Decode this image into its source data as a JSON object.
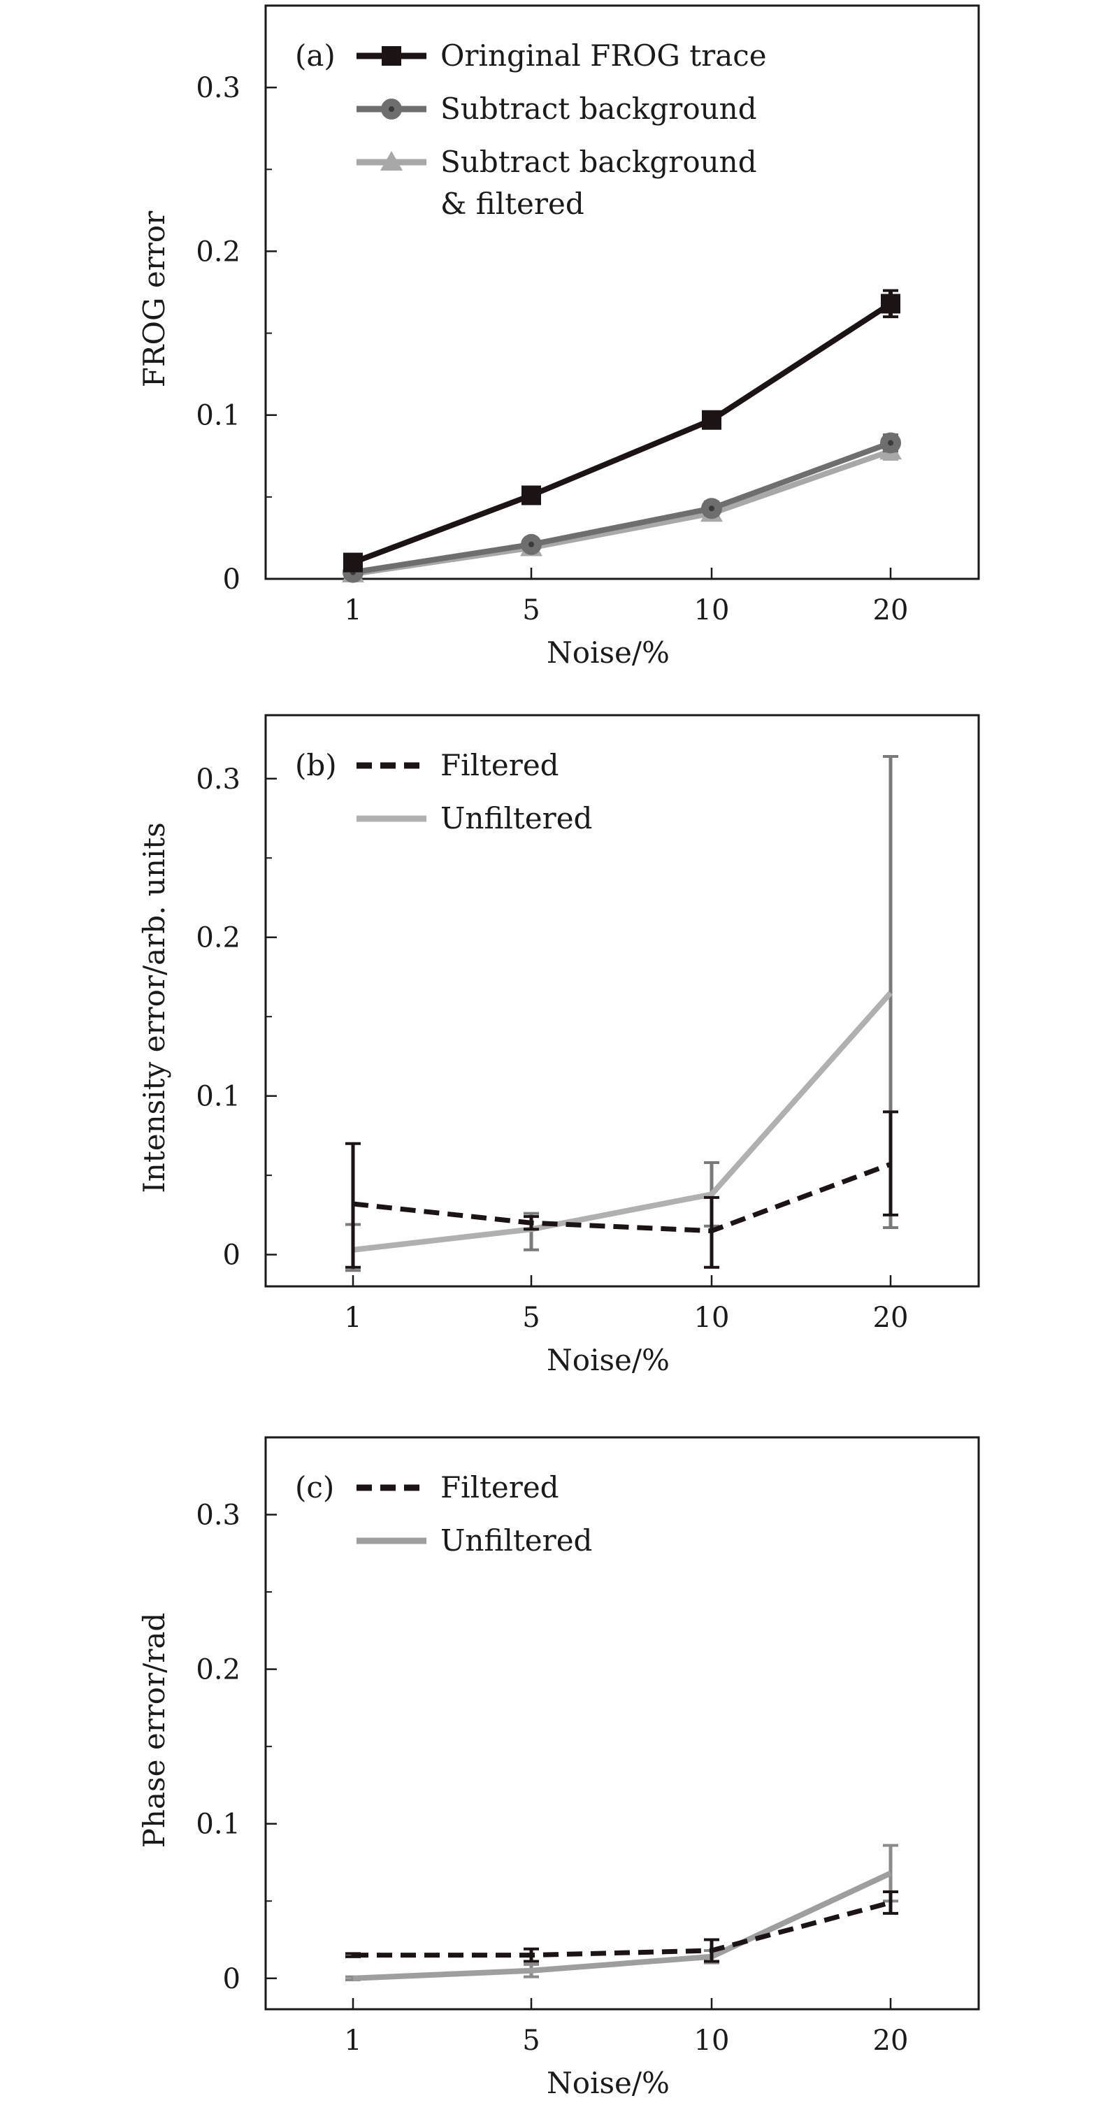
{
  "chart_data": [
    {
      "type": "line",
      "panel_label": "(a)",
      "xlabel": "Noise/%",
      "ylabel": "FROG error",
      "categories": [
        "1",
        "5",
        "10",
        "20"
      ],
      "ylim": [
        0,
        0.35
      ],
      "yticks": [
        0,
        0.1,
        0.2,
        0.3
      ],
      "ytick_labels": [
        "0",
        "0.1",
        "0.2",
        "0.3"
      ],
      "grid": false,
      "legend_position": "top-left",
      "series": [
        {
          "name": "Oringinal FROG trace",
          "values": [
            0.01,
            0.051,
            0.097,
            0.168
          ],
          "errors": [
            0.003,
            0.003,
            0.003,
            0.008
          ],
          "color": "#1c1414",
          "marker": "square",
          "dash": "solid"
        },
        {
          "name": "Subtract background",
          "values": [
            0.004,
            0.021,
            0.043,
            0.083
          ],
          "errors": [
            0.003,
            0.003,
            0.004,
            0.005
          ],
          "color": "#6e6e6e",
          "marker": "circle",
          "dash": "solid"
        },
        {
          "name": "Subtract background & filtered",
          "name_lines": [
            "Subtract background",
            "& filtered"
          ],
          "values": [
            0.003,
            0.019,
            0.04,
            0.078
          ],
          "errors": [
            0.002,
            0.003,
            0.004,
            0.005
          ],
          "color": "#a8a8a8",
          "marker": "triangle",
          "dash": "solid"
        }
      ]
    },
    {
      "type": "line",
      "panel_label": "(b)",
      "xlabel": "Noise/%",
      "ylabel": "Intensity error/arb. units",
      "categories": [
        "1",
        "5",
        "10",
        "20"
      ],
      "ylim": [
        -0.02,
        0.34
      ],
      "yticks": [
        0,
        0.1,
        0.2,
        0.3
      ],
      "ytick_labels": [
        "0",
        "0.1",
        "0.2",
        "0.3"
      ],
      "grid": false,
      "legend_position": "top-left",
      "series": [
        {
          "name": "Filtered",
          "values": [
            0.032,
            0.02,
            0.015,
            0.057
          ],
          "err_low": [
            0.04,
            0.004,
            0.023,
            0.032
          ],
          "err_high": [
            0.038,
            0.004,
            0.021,
            0.033
          ],
          "color": "#1c1414",
          "dash": "dashed",
          "err_color": "#1c1414"
        },
        {
          "name": "Unfiltered",
          "values": [
            0.003,
            0.016,
            0.038,
            0.165
          ],
          "err_low": [
            0.013,
            0.013,
            0.02,
            0.148
          ],
          "err_high": [
            0.016,
            0.01,
            0.02,
            0.149
          ],
          "color": "#b0b0b0",
          "dash": "solid",
          "err_color": "#7a7a7a"
        }
      ]
    },
    {
      "type": "line",
      "panel_label": "(c)",
      "xlabel": "Noise/%",
      "ylabel": "Phase error/rad",
      "categories": [
        "1",
        "5",
        "10",
        "20"
      ],
      "ylim": [
        -0.02,
        0.35
      ],
      "yticks": [
        0,
        0.1,
        0.2,
        0.3
      ],
      "ytick_labels": [
        "0",
        "0.1",
        "0.2",
        "0.3"
      ],
      "grid": false,
      "legend_position": "top-left",
      "series": [
        {
          "name": "Filtered",
          "values": [
            0.015,
            0.015,
            0.018,
            0.049
          ],
          "err_low": [
            0.001,
            0.004,
            0.007,
            0.007
          ],
          "err_high": [
            0.001,
            0.004,
            0.007,
            0.007
          ],
          "color": "#1c1414",
          "dash": "dashed",
          "err_color": "#1c1414"
        },
        {
          "name": "Unfiltered",
          "values": [
            0.0,
            0.005,
            0.014,
            0.068
          ],
          "err_low": [
            0.001,
            0.004,
            0.004,
            0.018
          ],
          "err_high": [
            0.001,
            0.004,
            0.004,
            0.018
          ],
          "color": "#9e9e9e",
          "dash": "solid",
          "err_color": "#8a8a8a"
        }
      ]
    }
  ]
}
